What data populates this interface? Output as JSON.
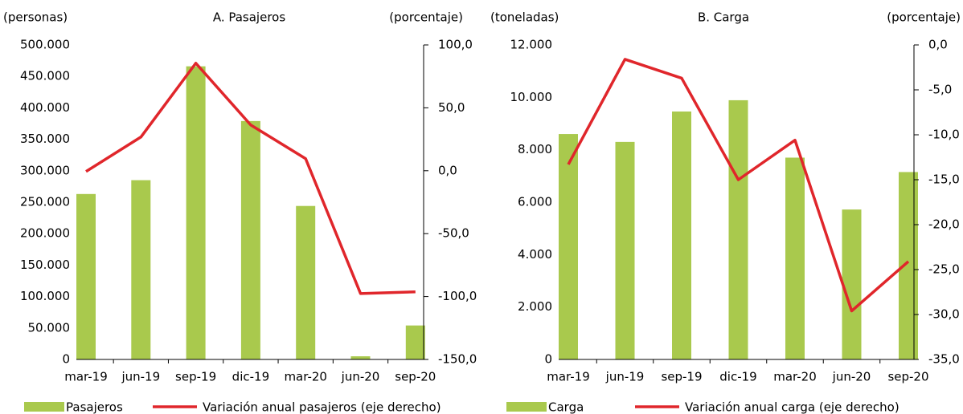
{
  "chart_data": [
    {
      "type": "bar",
      "title": "A. Pasajeros",
      "y_label": "(personas)",
      "y2_label": "(porcentaje)",
      "categories": [
        "mar-19",
        "jun-19",
        "sep-19",
        "dic-19",
        "mar-20",
        "jun-20",
        "sep-20"
      ],
      "series": [
        {
          "name": "Pasajeros",
          "color": "#a9c94d",
          "values": [
            263000,
            285000,
            466000,
            379000,
            244000,
            5000,
            54000
          ]
        },
        {
          "name": "Variación anual pasajeros (eje derecho)",
          "color": "#e0262b",
          "axis": "y2",
          "values": [
            -0.6,
            26.8,
            85.5,
            36.4,
            9.6,
            -97.6,
            -96.3
          ]
        }
      ],
      "ylim": [
        0,
        500000
      ],
      "yticks": [
        0,
        {
          "value": 50000,
          "label": "50.000"
        },
        {
          "value": 100000,
          "label": "100.000"
        },
        {
          "value": 150000,
          "label": "150.000"
        },
        {
          "value": 200000,
          "label": "200.000"
        },
        {
          "value": 250000,
          "label": "250.000"
        },
        {
          "value": 300000,
          "label": "300.000"
        },
        {
          "value": 350000,
          "label": "350.000"
        },
        {
          "value": 400000,
          "label": "400.000"
        },
        {
          "value": 450000,
          "label": "450.000"
        },
        {
          "value": 500000,
          "label": "500.000"
        }
      ],
      "y2lim": [
        -150,
        100
      ],
      "y2ticks": [
        {
          "value": -150,
          "label": "-150,0"
        },
        {
          "value": -100,
          "label": "-100,0"
        },
        {
          "value": -50,
          "label": "-50,0"
        },
        {
          "value": 0,
          "label": "0,0"
        },
        {
          "value": 50,
          "label": "50,0"
        },
        {
          "value": 100,
          "label": "100,0"
        }
      ]
    },
    {
      "type": "bar",
      "title": "B. Carga",
      "y_label": "(toneladas)",
      "y2_label": "(porcentaje)",
      "categories": [
        "mar-19",
        "jun-19",
        "sep-19",
        "dic-19",
        "mar-20",
        "jun-20",
        "sep-20"
      ],
      "series": [
        {
          "name": "Carga",
          "color": "#a9c94d",
          "values": [
            8600,
            8300,
            9460,
            9890,
            7700,
            5720,
            7150
          ]
        },
        {
          "name": "Variación anual carga (eje derecho)",
          "color": "#e0262b",
          "axis": "y2",
          "values": [
            -13.3,
            -1.6,
            -3.7,
            -15.0,
            -10.6,
            -29.6,
            -24.1
          ]
        }
      ],
      "ylim": [
        0,
        12000
      ],
      "yticks": [
        0,
        {
          "value": 2000,
          "label": "2.000"
        },
        {
          "value": 4000,
          "label": "4.000"
        },
        {
          "value": 6000,
          "label": "6.000"
        },
        {
          "value": 8000,
          "label": "8.000"
        },
        {
          "value": 10000,
          "label": "10.000"
        },
        {
          "value": 12000,
          "label": "12.000"
        }
      ],
      "y2lim": [
        -35,
        0
      ],
      "y2ticks": [
        {
          "value": -35,
          "label": "-35,0"
        },
        {
          "value": -30,
          "label": "-30,0"
        },
        {
          "value": -25,
          "label": "-25,0"
        },
        {
          "value": -20,
          "label": "-20,0"
        },
        {
          "value": -15,
          "label": "-15,0"
        },
        {
          "value": -10,
          "label": "-10,0"
        },
        {
          "value": -5,
          "label": "-5,0"
        },
        {
          "value": 0,
          "label": "0,0"
        }
      ]
    }
  ]
}
